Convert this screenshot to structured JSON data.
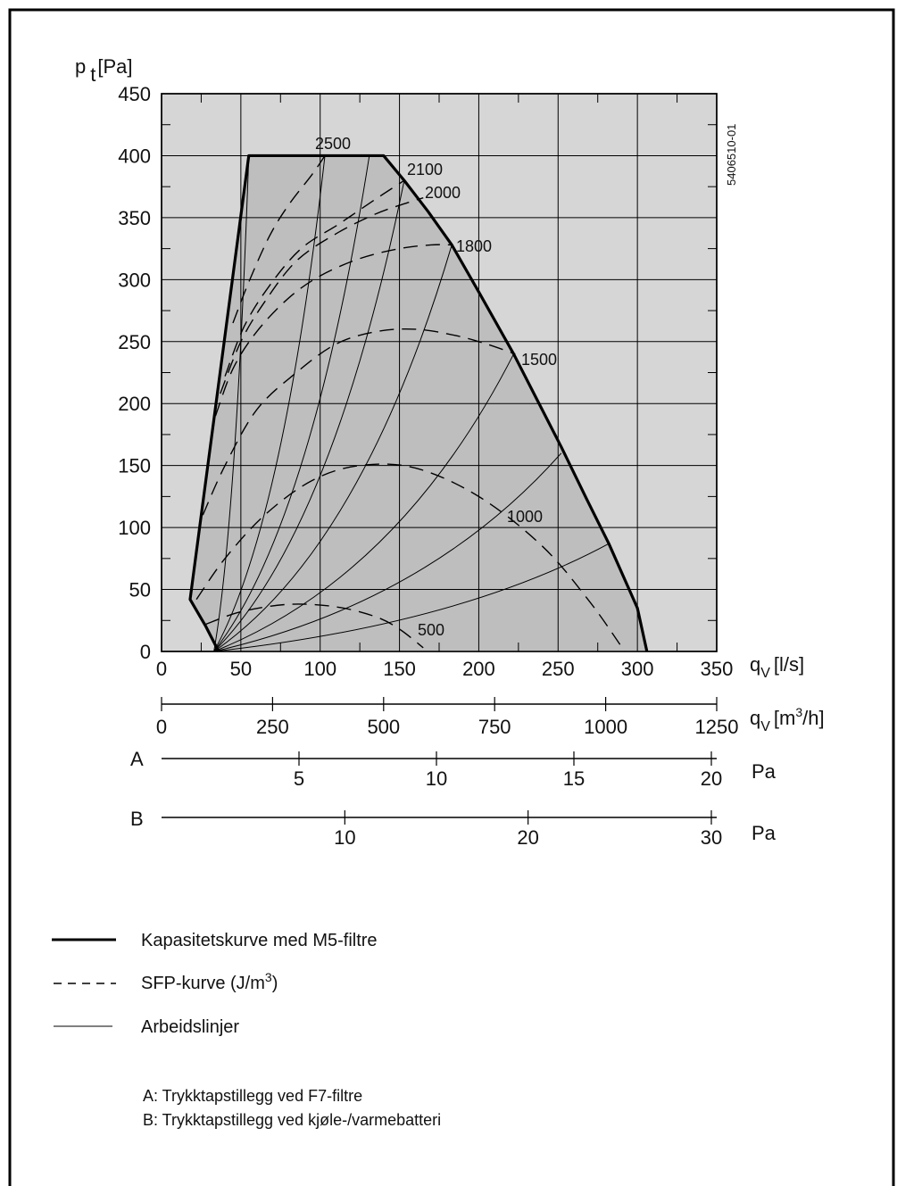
{
  "chart_data": {
    "type": "line",
    "code": "5406510-01",
    "y_axis": {
      "label_main": "p",
      "label_sub": "t",
      "label_unit": "[Pa]",
      "range": [
        0,
        450
      ],
      "ticks": [
        "0",
        "50",
        "100",
        "150",
        "200",
        "250",
        "300",
        "350",
        "400",
        "450"
      ]
    },
    "x_axis_ls": {
      "label_main": "q",
      "label_sub": "V",
      "label_unit": "[l/s]",
      "range": [
        0,
        350
      ],
      "ticks": [
        "0",
        "50",
        "100",
        "150",
        "200",
        "250",
        "300",
        "350"
      ]
    },
    "x_axis_m3h": {
      "label_main": "q",
      "label_sub": "V",
      "label_unit_a": "[m",
      "label_unit_sup": "3",
      "label_unit_b": "/h]",
      "range": [
        0,
        1250
      ],
      "ticks": [
        "0",
        "250",
        "500",
        "750",
        "1000",
        "1250"
      ]
    },
    "scale_a": {
      "letter": "A",
      "unit": "Pa",
      "range": [
        0,
        20
      ],
      "ticks": [
        "5",
        "10",
        "15",
        "20"
      ]
    },
    "scale_b": {
      "letter": "B",
      "unit": "Pa",
      "range": [
        0,
        30
      ],
      "ticks": [
        "10",
        "20",
        "30"
      ]
    },
    "capacity_curve": {
      "x": [
        18,
        28,
        36,
        55,
        140,
        153,
        168,
        183,
        200,
        222,
        238,
        252,
        268,
        282,
        300,
        306
      ],
      "y": [
        42,
        20,
        0,
        400,
        400,
        380,
        355,
        328,
        290,
        240,
        200,
        165,
        123,
        87,
        35,
        0
      ]
    },
    "sfp_curves": [
      {
        "label": "500",
        "x": [
          28,
          50,
          80,
          110,
          135,
          150,
          165
        ],
        "y": [
          22,
          32,
          38,
          36,
          28,
          18,
          3
        ]
      },
      {
        "label": "1000",
        "x": [
          22,
          40,
          65,
          95,
          125,
          160,
          200,
          240,
          270,
          292
        ],
        "y": [
          42,
          75,
          110,
          138,
          150,
          148,
          125,
          85,
          40,
          0
        ]
      },
      {
        "label": "1500",
        "x": [
          26,
          40,
          60,
          85,
          110,
          135,
          160,
          185,
          205,
          223
        ],
        "y": [
          110,
          150,
          195,
          225,
          248,
          258,
          260,
          255,
          248,
          240
        ]
      },
      {
        "label": "1800",
        "x": [
          34,
          45,
          60,
          80,
          100,
          125,
          150,
          170,
          183
        ],
        "y": [
          190,
          228,
          258,
          285,
          303,
          317,
          325,
          328,
          328
        ]
      },
      {
        "label": "2000",
        "x": [
          37,
          50,
          65,
          85,
          110,
          135,
          155,
          165
        ],
        "y": [
          208,
          250,
          282,
          315,
          337,
          353,
          362,
          366
        ]
      },
      {
        "label": "2100",
        "x": [
          40,
          52,
          68,
          88,
          112,
          135,
          153
        ],
        "y": [
          222,
          262,
          295,
          325,
          345,
          365,
          380
        ]
      },
      {
        "label": "2500",
        "x": [
          45,
          55,
          68,
          80,
          95,
          103
        ],
        "y": [
          265,
          298,
          335,
          360,
          385,
          400
        ]
      }
    ],
    "work_lines": [
      {
        "from": [
          33,
          0
        ],
        "to": [
          55,
          400
        ]
      },
      {
        "from": [
          33,
          0
        ],
        "to": [
          103,
          400
        ]
      },
      {
        "from": [
          33,
          0
        ],
        "to": [
          131,
          400
        ]
      },
      {
        "from": [
          33,
          0
        ],
        "to": [
          153,
          380
        ]
      },
      {
        "from": [
          33,
          0
        ],
        "to": [
          183,
          328
        ]
      },
      {
        "from": [
          33,
          0
        ],
        "to": [
          222,
          240
        ]
      },
      {
        "from": [
          33,
          0
        ],
        "to": [
          252,
          160
        ]
      },
      {
        "from": [
          33,
          0
        ],
        "to": [
          282,
          87
        ]
      }
    ],
    "legend": [
      {
        "style": "thick",
        "label": "Kapasitetskurve med M5-filtre"
      },
      {
        "style": "dashed",
        "label_a": "SFP-kurve (J/m",
        "label_sup": "3",
        "label_b": ")"
      },
      {
        "style": "thin",
        "label": "Arbeidslinjer"
      }
    ],
    "notes": [
      "A: Trykktapstillegg ved F7-filtre",
      "B: Trykktapstillegg ved kjøle-/varmebatteri"
    ]
  }
}
